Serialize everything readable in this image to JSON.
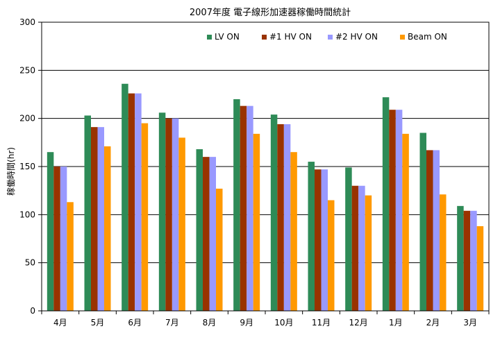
{
  "chart_data": {
    "type": "bar",
    "title": "2007年度 電子線形加速器稼働時間統計",
    "xlabel": "",
    "ylabel": "稼働時間(hr)",
    "ylim": [
      0,
      300
    ],
    "yticks": [
      0,
      50,
      100,
      150,
      200,
      250,
      300
    ],
    "grid": true,
    "legend_position": "top-right",
    "categories": [
      "4月",
      "5月",
      "6月",
      "7月",
      "8月",
      "9月",
      "10月",
      "11月",
      "12月",
      "1月",
      "2月",
      "3月"
    ],
    "series": [
      {
        "name": "LV ON",
        "color": "#2e8b57",
        "values": [
          165,
          203,
          236,
          206,
          168,
          220,
          204,
          155,
          149,
          222,
          185,
          109
        ]
      },
      {
        "name": "#1 HV ON",
        "color": "#993300",
        "values": [
          150,
          191,
          226,
          200,
          160,
          213,
          194,
          147,
          130,
          209,
          167,
          104
        ]
      },
      {
        "name": "#2 HV ON",
        "color": "#9999ff",
        "values": [
          150,
          191,
          226,
          200,
          160,
          213,
          194,
          147,
          130,
          209,
          167,
          104
        ]
      },
      {
        "name": "Beam ON",
        "color": "#ff9900",
        "values": [
          113,
          171,
          195,
          180,
          127,
          184,
          165,
          115,
          120,
          184,
          121,
          88
        ]
      }
    ]
  }
}
